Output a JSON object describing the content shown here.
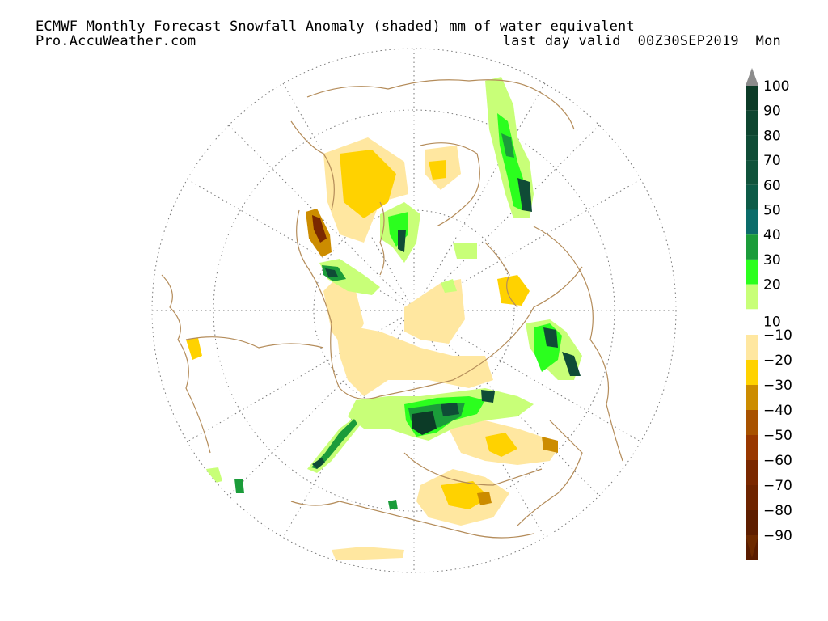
{
  "header": {
    "line1": "ECMWF Monthly Forecast Snowfall Anomaly (shaded) mm of water equivalent",
    "line2_left": "Pro.AccuWeather.com",
    "line2_right": "last day valid  00Z30SEP2019  Mon"
  },
  "legend": {
    "positive": [
      {
        "label": "100",
        "color": "#0c3b27"
      },
      {
        "label": "90",
        "color": "#0e4530"
      },
      {
        "label": "80",
        "color": "#0f4c36"
      },
      {
        "label": "70",
        "color": "#10533b"
      },
      {
        "label": "60",
        "color": "#0d5b47"
      },
      {
        "label": "50",
        "color": "#0b6c6a"
      },
      {
        "label": "40",
        "color": "#1b9c3a"
      },
      {
        "label": "30",
        "color": "#2bff1e"
      },
      {
        "label": "20",
        "color": "#c8ff78"
      },
      {
        "label": "10",
        "color": ""
      }
    ],
    "negative": [
      {
        "label": "−10",
        "color": "#ffe7a0"
      },
      {
        "label": "−20",
        "color": "#ffd200"
      },
      {
        "label": "−30",
        "color": "#cc8c00"
      },
      {
        "label": "−40",
        "color": "#a85200"
      },
      {
        "label": "−50",
        "color": "#993800"
      },
      {
        "label": "−60",
        "color": "#7a2800"
      },
      {
        "label": "−70",
        "color": "#6e2400"
      },
      {
        "label": "−80",
        "color": "#5e1e00"
      },
      {
        "label": "−90",
        "color": "#5a1c00"
      }
    ],
    "top_arrow_color": "#8c8c8c",
    "bottom_arrow_color": "#6e2a00"
  },
  "colors": {
    "coast": "#b48c5a",
    "grid": "#777777"
  }
}
